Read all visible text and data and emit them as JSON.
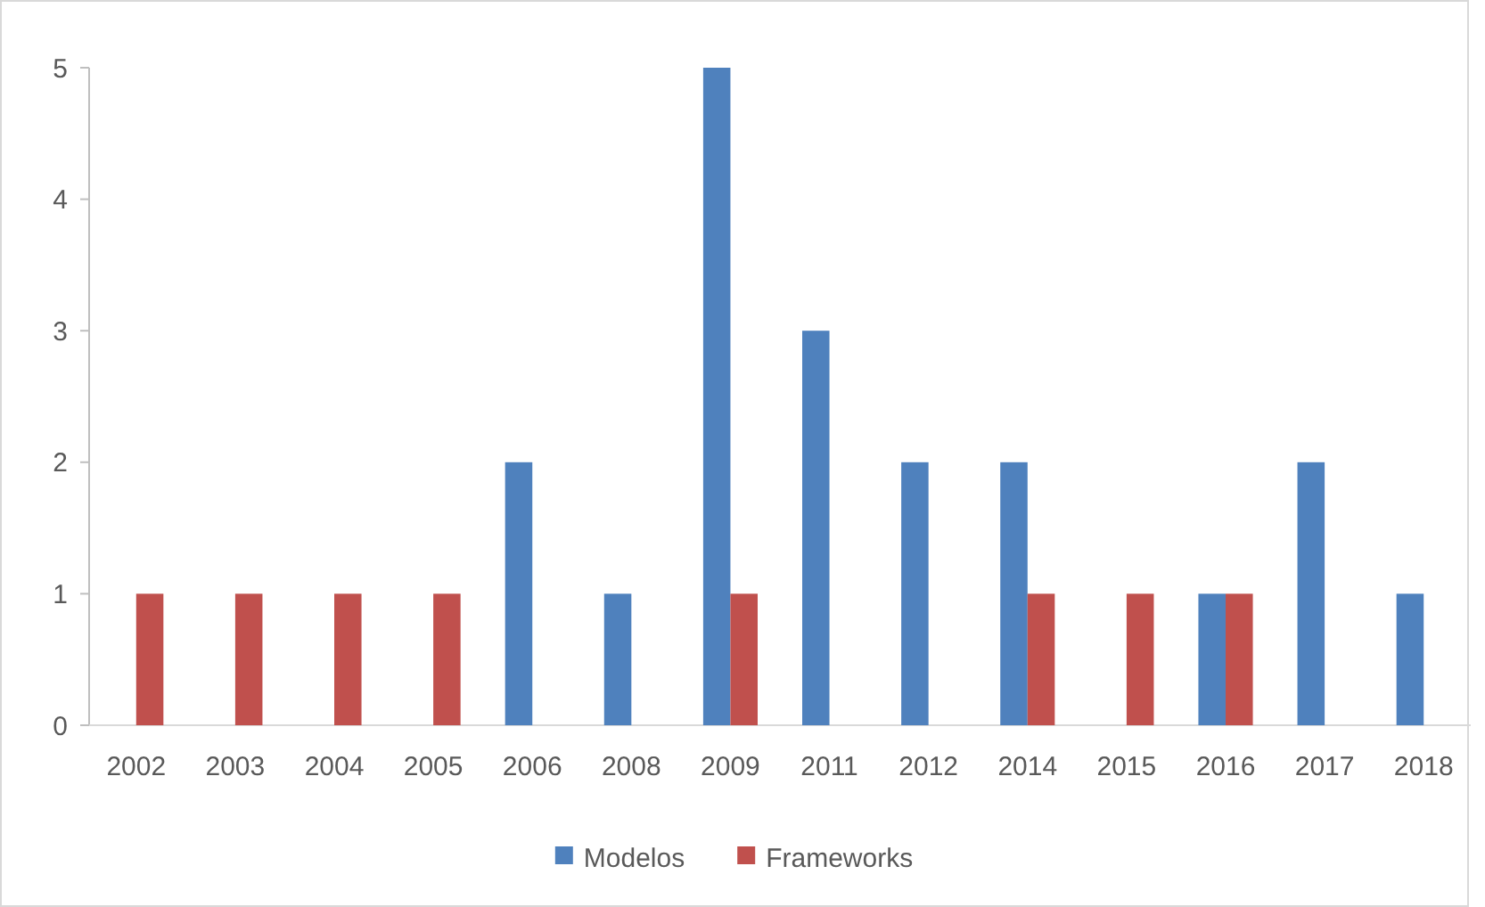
{
  "chart_data": {
    "type": "bar",
    "categories": [
      "2002",
      "2003",
      "2004",
      "2005",
      "2006",
      "2008",
      "2009",
      "2011",
      "2012",
      "2014",
      "2015",
      "2016",
      "2017",
      "2018"
    ],
    "series": [
      {
        "name": "Modelos",
        "color": "#4f81bd",
        "values": [
          0,
          0,
          0,
          0,
          2,
          1,
          5,
          3,
          2,
          2,
          0,
          1,
          2,
          1
        ]
      },
      {
        "name": "Frameworks",
        "color": "#c0504d",
        "values": [
          1,
          1,
          1,
          1,
          0,
          0,
          1,
          0,
          0,
          1,
          1,
          1,
          0,
          0
        ]
      }
    ],
    "ylim": [
      0,
      5
    ],
    "yticks": [
      0,
      1,
      2,
      3,
      4,
      5
    ],
    "grid": false,
    "legend": "bottom"
  }
}
